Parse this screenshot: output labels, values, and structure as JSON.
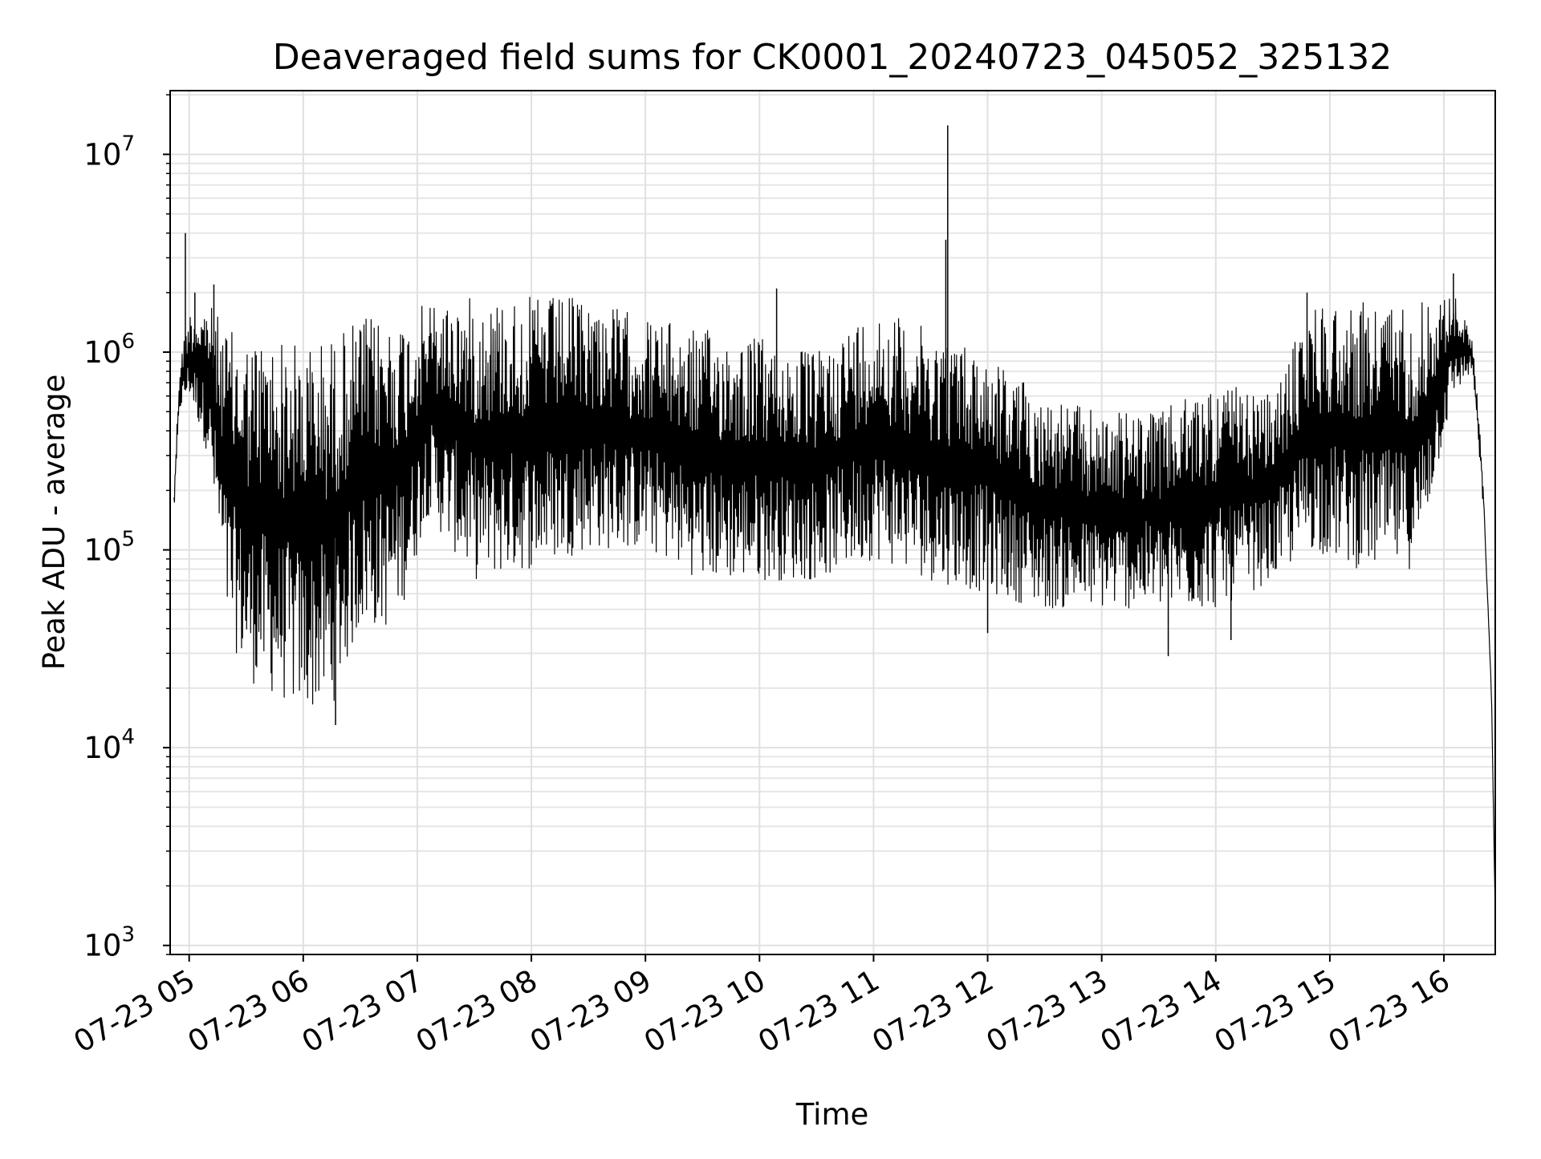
{
  "chart_data": {
    "type": "line",
    "title": "Deaveraged field sums for CK0001_20240723_045052_325132",
    "xlabel": "Time",
    "ylabel": "Peak ADU - average",
    "yscale": "log",
    "xlim": [
      "07-23 04:50",
      "07-23 16:27"
    ],
    "ylim": [
      900,
      21000000
    ],
    "grid": "major and minor",
    "x_tick_labels": [
      "07-23 05",
      "07-23 06",
      "07-23 07",
      "07-23 08",
      "07-23 09",
      "07-23 10",
      "07-23 11",
      "07-23 12",
      "07-23 13",
      "07-23 14",
      "07-23 15",
      "07-23 16"
    ],
    "y_ticks": [
      {
        "value": 1000,
        "base": "10",
        "exp": "3"
      },
      {
        "value": 10000,
        "base": "10",
        "exp": "4"
      },
      {
        "value": 100000,
        "base": "10",
        "exp": "5"
      },
      {
        "value": 1000000,
        "base": "10",
        "exp": "6"
      },
      {
        "value": 10000000,
        "base": "10",
        "exp": "7"
      }
    ],
    "series": [
      {
        "color": "#000000",
        "envelope": [
          {
            "t": "07-23 04:52",
            "high": 200000,
            "low": 150000
          },
          {
            "t": "07-23 04:55",
            "high": 900000,
            "low": 500000
          },
          {
            "t": "07-23 05:00",
            "high": 1600000,
            "low": 600000
          },
          {
            "t": "07-23 05:10",
            "high": 1800000,
            "low": 300000
          },
          {
            "t": "07-23 05:20",
            "high": 1300000,
            "low": 40000
          },
          {
            "t": "07-23 05:30",
            "high": 1200000,
            "low": 22000
          },
          {
            "t": "07-23 05:45",
            "high": 1200000,
            "low": 18000
          },
          {
            "t": "07-23 06:00",
            "high": 1100000,
            "low": 15000
          },
          {
            "t": "07-23 06:15",
            "high": 1200000,
            "low": 16000
          },
          {
            "t": "07-23 06:30",
            "high": 1500000,
            "low": 40000
          },
          {
            "t": "07-23 06:45",
            "high": 1500000,
            "low": 40000
          },
          {
            "t": "07-23 06:55",
            "high": 1500000,
            "low": 60000
          },
          {
            "t": "07-23 07:05",
            "high": 1800000,
            "low": 150000
          },
          {
            "t": "07-23 07:30",
            "high": 1900000,
            "low": 70000
          },
          {
            "t": "07-23 08:00",
            "high": 1900000,
            "low": 80000
          },
          {
            "t": "07-23 08:30",
            "high": 1900000,
            "low": 100000
          },
          {
            "t": "07-23 09:00",
            "high": 1500000,
            "low": 100000
          },
          {
            "t": "07-23 09:30",
            "high": 1300000,
            "low": 70000
          },
          {
            "t": "07-23 10:00",
            "high": 1200000,
            "low": 70000
          },
          {
            "t": "07-23 10:30",
            "high": 1000000,
            "low": 70000
          },
          {
            "t": "07-23 11:00",
            "high": 1700000,
            "low": 90000
          },
          {
            "t": "07-23 11:30",
            "high": 1300000,
            "low": 70000
          },
          {
            "t": "07-23 12:00",
            "high": 1000000,
            "low": 60000
          },
          {
            "t": "07-23 12:30",
            "high": 600000,
            "low": 50000
          },
          {
            "t": "07-23 13:00",
            "high": 500000,
            "low": 50000
          },
          {
            "t": "07-23 13:30",
            "high": 500000,
            "low": 50000
          },
          {
            "t": "07-23 14:00",
            "high": 700000,
            "low": 50000
          },
          {
            "t": "07-23 14:30",
            "high": 600000,
            "low": 70000
          },
          {
            "t": "07-23 14:50",
            "high": 1800000,
            "low": 100000
          },
          {
            "t": "07-23 15:15",
            "high": 1800000,
            "low": 80000
          },
          {
            "t": "07-23 15:45",
            "high": 1800000,
            "low": 80000
          },
          {
            "t": "07-23 16:05",
            "high": 2000000,
            "low": 600000
          },
          {
            "t": "07-23 16:15",
            "high": 1200000,
            "low": 800000
          },
          {
            "t": "07-23 16:20",
            "high": 300000,
            "low": 200000
          },
          {
            "t": "07-23 16:25",
            "high": 20000,
            "low": 10000
          },
          {
            "t": "07-23 16:27",
            "high": 1400,
            "low": 1400
          }
        ],
        "spikes": [
          {
            "t": "07-23 04:58",
            "value": 4000000
          },
          {
            "t": "07-23 05:03",
            "value": 2000000
          },
          {
            "t": "07-23 05:13",
            "value": 2200000
          },
          {
            "t": "07-23 10:09",
            "value": 2100000
          },
          {
            "t": "07-23 11:38",
            "value": 3700000
          },
          {
            "t": "07-23 11:39",
            "value": 14000000
          },
          {
            "t": "07-23 14:48",
            "value": 2000000
          },
          {
            "t": "07-23 16:05",
            "value": 2500000
          }
        ],
        "dips": [
          {
            "t": "07-23 06:17",
            "value": 13000
          },
          {
            "t": "07-23 12:00",
            "value": 38000
          },
          {
            "t": "07-23 13:35",
            "value": 29000
          },
          {
            "t": "07-23 14:08",
            "value": 35000
          }
        ]
      }
    ]
  }
}
